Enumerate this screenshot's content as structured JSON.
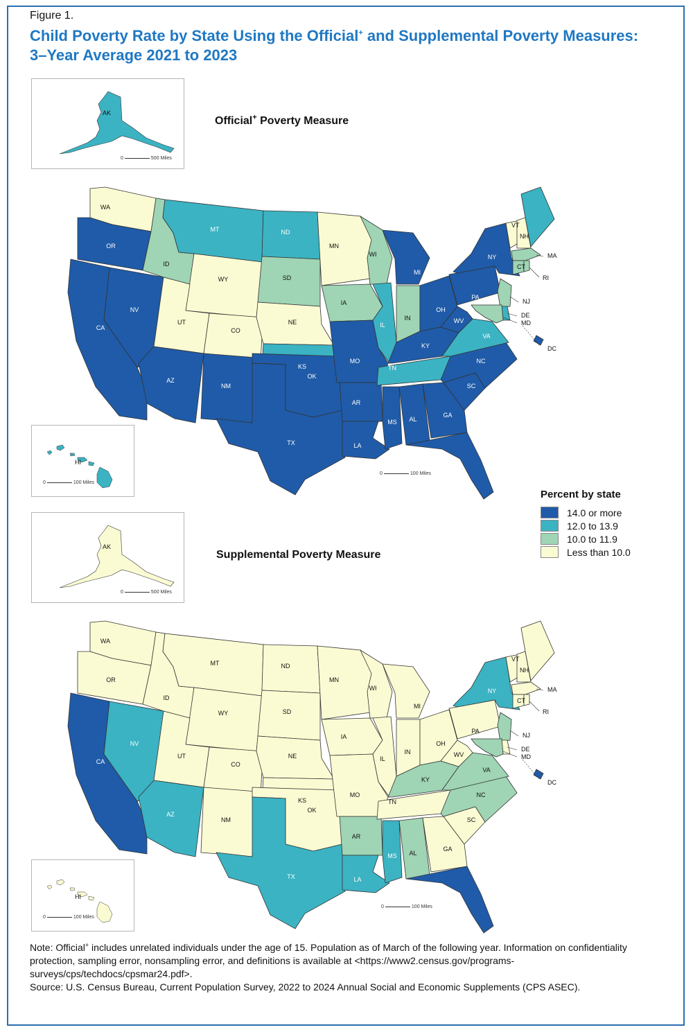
{
  "figure_label": "Figure 1.",
  "title": {
    "part1": "Child Poverty Rate by State Using the Official",
    "sup": "+",
    "part2": " and Supplemental Poverty Measures: 3–Year Average 2021 to 2023"
  },
  "maps": {
    "official": {
      "title": "Official",
      "title_sup": "+",
      "title_rest": " Poverty Measure"
    },
    "supplemental": {
      "title": "Supplemental Poverty Measure"
    }
  },
  "scales": {
    "alaska": "500 Miles",
    "hawaii": "100 Miles",
    "mainland": "100 Miles",
    "zero": "0"
  },
  "legend": {
    "title": "Percent by state",
    "items": [
      {
        "label": "14.0 or more",
        "color": "#1f5ba8"
      },
      {
        "label": "12.0 to 13.9",
        "color": "#3bb3c3"
      },
      {
        "label": "10.0 to 11.9",
        "color": "#9fd4b4"
      },
      {
        "label": "Less than 10.0",
        "color": "#fbfbd3"
      }
    ]
  },
  "state_categories": {
    "official": {
      "WA": 4,
      "OR": 1,
      "CA": 1,
      "NV": 1,
      "ID": 3,
      "MT": 2,
      "WY": 4,
      "UT": 4,
      "CO": 4,
      "AZ": 1,
      "NM": 1,
      "ND": 2,
      "SD": 3,
      "NE": 4,
      "KS": 2,
      "OK": 1,
      "TX": 1,
      "MN": 4,
      "IA": 3,
      "MO": 1,
      "AR": 1,
      "LA": 1,
      "WI": 3,
      "IL": 2,
      "MI": 1,
      "IN": 3,
      "OH": 1,
      "KY": 1,
      "TN": 2,
      "MS": 1,
      "AL": 1,
      "GA": 1,
      "FL": 1,
      "SC": 1,
      "NC": 1,
      "VA": 2,
      "WV": 1,
      "PA": 1,
      "NY": 1,
      "VT": 4,
      "NH": 4,
      "ME": 2,
      "MA": 3,
      "RI": 3,
      "CT": 3,
      "NJ": 3,
      "DE": 2,
      "MD": 3,
      "DC": 1,
      "AK": 2,
      "HI": 2
    },
    "supplemental": {
      "WA": 4,
      "OR": 4,
      "CA": 1,
      "NV": 2,
      "ID": 4,
      "MT": 4,
      "WY": 4,
      "UT": 4,
      "CO": 4,
      "AZ": 2,
      "NM": 4,
      "ND": 4,
      "SD": 4,
      "NE": 4,
      "KS": 4,
      "OK": 4,
      "TX": 2,
      "MN": 4,
      "IA": 4,
      "MO": 4,
      "AR": 3,
      "LA": 2,
      "WI": 4,
      "IL": 4,
      "MI": 4,
      "IN": 4,
      "OH": 4,
      "KY": 3,
      "TN": 4,
      "MS": 2,
      "AL": 3,
      "GA": 4,
      "FL": 1,
      "SC": 4,
      "NC": 3,
      "VA": 3,
      "WV": 4,
      "PA": 4,
      "NY": 2,
      "VT": 4,
      "NH": 4,
      "ME": 4,
      "MA": 4,
      "RI": 4,
      "CT": 4,
      "NJ": 3,
      "DE": 4,
      "MD": 3,
      "DC": 1,
      "AK": 4,
      "HI": 4
    }
  },
  "notes": {
    "note_prefix": "Note: Official",
    "note_sup": "+",
    "note_rest": " includes unrelated individuals under the age of 15. Population as of March of the following year. Information on confidentiality protection, sampling error, nonsampling error, and definitions is available at <https://www2.census.gov/programs-surveys/cps/techdocs/cpsmar24.pdf>.",
    "source": "Source: U.S. Census Bureau, Current Population Survey, 2022 to 2024 Annual Social and Economic Supplements (CPS ASEC)."
  }
}
